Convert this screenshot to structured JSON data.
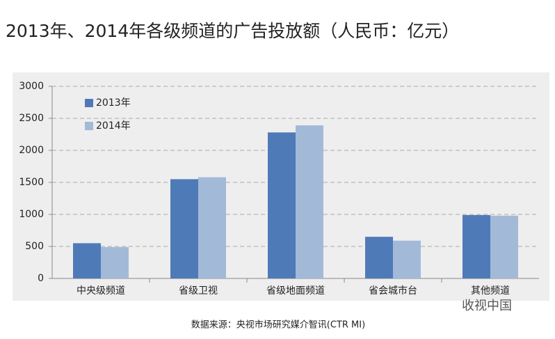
{
  "chart_data": {
    "type": "bar",
    "title": "2013年、2014年各级频道的广告投放额（人民币：亿元）",
    "categories": [
      "中央级频道",
      "省级卫视",
      "省级地面频道",
      "省会城市台",
      "其他频道"
    ],
    "series": [
      {
        "name": "2013年",
        "color": "#4f7ab8",
        "values": [
          550,
          1550,
          2280,
          650,
          990
        ]
      },
      {
        "name": "2014年",
        "color": "#a3b9d8",
        "values": [
          490,
          1580,
          2390,
          590,
          980
        ]
      }
    ],
    "ylim": [
      0,
      3000
    ],
    "yticks": [
      0,
      500,
      1000,
      1500,
      2000,
      2500,
      3000
    ],
    "grid": true,
    "legend": "top-left"
  },
  "source": "数据来源：央视市场研究媒介智讯(CTR MI)",
  "watermark": "收视中国"
}
